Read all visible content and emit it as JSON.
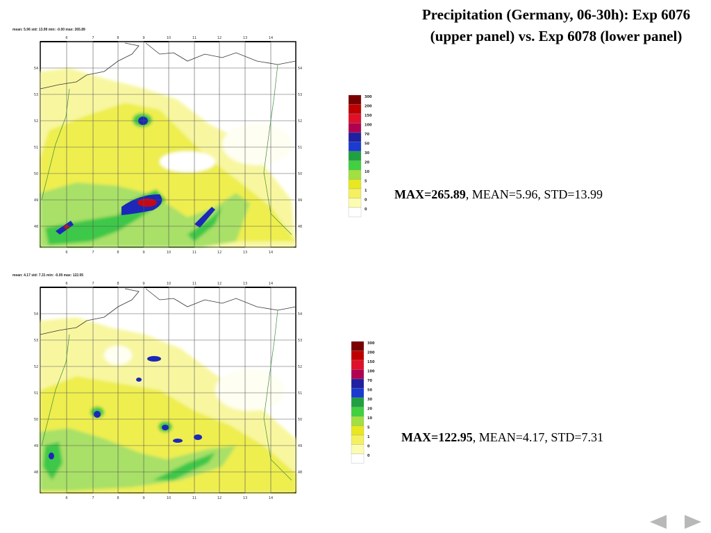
{
  "slide": {
    "title": "Precipitation (Germany, 06-30h): Exp 6076 (upper panel) vs. Exp 6078 (lower panel)"
  },
  "panels": [
    {
      "stats_line": "mean: 5.96 std: 13.99 min: -0.00 max: 265.89",
      "max_label": "MAX=265.89",
      "rest_label": ", MEAN=5.96, STD=13.99",
      "lon_ticks": [
        "6",
        "7",
        "8",
        "9",
        "10",
        "11",
        "12",
        "13",
        "14"
      ],
      "lat_ticks": [
        "54",
        "53",
        "52",
        "51",
        "50",
        "49",
        "48"
      ]
    },
    {
      "stats_line": "mean: 4.17 std: 7.31 min: -0.00 max: 122.95",
      "max_label": "MAX=122.95",
      "rest_label": ", MEAN=4.17, STD=7.31",
      "lon_ticks": [
        "6",
        "7",
        "8",
        "9",
        "10",
        "11",
        "12",
        "13",
        "14"
      ],
      "lat_ticks": [
        "54",
        "53",
        "52",
        "51",
        "50",
        "49",
        "48"
      ]
    }
  ],
  "legend": {
    "levels": [
      "300",
      "200",
      "150",
      "100",
      "70",
      "50",
      "30",
      "20",
      "10",
      "5",
      "1",
      "0",
      "0"
    ],
    "colors": [
      "#7a0000",
      "#c00000",
      "#e0102a",
      "#b00050",
      "#2020a0",
      "#1a3ad0",
      "#20a040",
      "#40d040",
      "#a0e040",
      "#e8e820",
      "#f4f060",
      "#fcfcb0",
      "#ffffff"
    ]
  },
  "colors": {
    "light_yellow": "#f8f7a0",
    "yellow": "#eeee50",
    "light_green": "#a8e068",
    "green": "#3cc848",
    "blue": "#1c28b8",
    "red": "#c40818"
  },
  "navigation": {
    "prev_icon": "triangle-left-icon",
    "next_icon": "triangle-right-icon"
  }
}
